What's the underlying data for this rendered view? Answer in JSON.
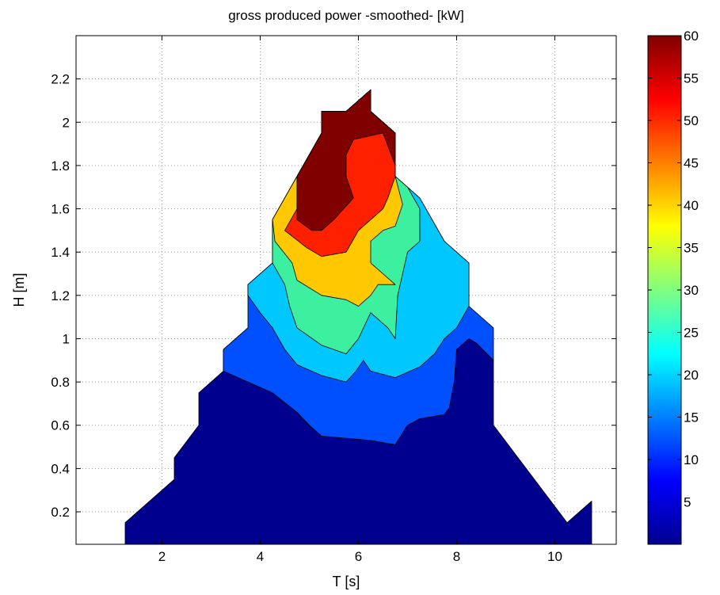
{
  "chart_data": {
    "type": "contour",
    "title": "gross produced power -smoothed- [kW]",
    "xlabel": "T [s]",
    "ylabel": "H [m]",
    "xlim": [
      0.25,
      11.25
    ],
    "ylim": [
      0.05,
      2.4
    ],
    "xticks": [
      2,
      4,
      6,
      8,
      10
    ],
    "yticks": [
      0.2,
      0.4,
      0.6,
      0.8,
      1,
      1.2,
      1.4,
      1.6,
      1.8,
      2,
      2.2
    ],
    "ytick_labels": [
      "0.2",
      "0.4",
      "0.6",
      "0.8",
      "1",
      "1.2",
      "1.4",
      "1.6",
      "1.8",
      "2",
      "2.2"
    ],
    "grid": true,
    "colormap": "jet",
    "colorbar": {
      "range": [
        0,
        60
      ],
      "ticks": [
        5,
        10,
        15,
        20,
        25,
        30,
        35,
        40,
        45,
        50,
        55,
        60
      ],
      "tick_labels": [
        "5",
        "10",
        "15",
        "20",
        "25",
        "30",
        "35",
        "40",
        "45",
        "50",
        "55",
        "60"
      ]
    },
    "levels": [
      {
        "value": 0,
        "color": "#00008f",
        "polygon": [
          [
            1.25,
            0.05
          ],
          [
            1.25,
            0.15
          ],
          [
            2.25,
            0.35
          ],
          [
            2.25,
            0.45
          ],
          [
            2.75,
            0.6
          ],
          [
            2.75,
            0.75
          ],
          [
            3.25,
            0.85
          ],
          [
            3.25,
            0.95
          ],
          [
            3.75,
            1.05
          ],
          [
            8.25,
            1.05
          ],
          [
            8.75,
            0.9
          ],
          [
            8.75,
            0.6
          ],
          [
            9.25,
            0.45
          ],
          [
            9.75,
            0.3
          ],
          [
            10.25,
            0.15
          ],
          [
            10.75,
            0.25
          ],
          [
            10.75,
            0.05
          ]
        ]
      },
      {
        "value": 10,
        "color": "#0050ff",
        "polygon": [
          [
            3.25,
            0.85
          ],
          [
            3.25,
            0.95
          ],
          [
            3.75,
            1.05
          ],
          [
            3.75,
            1.25
          ],
          [
            4.25,
            1.35
          ],
          [
            4.25,
            1.55
          ],
          [
            4.75,
            1.75
          ],
          [
            5.25,
            1.95
          ],
          [
            5.25,
            2.05
          ],
          [
            5.75,
            2.05
          ],
          [
            6.25,
            2.15
          ],
          [
            6.25,
            2.05
          ],
          [
            6.75,
            1.95
          ],
          [
            6.75,
            1.75
          ],
          [
            7.25,
            1.65
          ],
          [
            7.75,
            1.45
          ],
          [
            8.25,
            1.35
          ],
          [
            8.25,
            1.15
          ],
          [
            8.75,
            1.05
          ],
          [
            8.75,
            0.9
          ],
          [
            8.4,
            0.98
          ],
          [
            8.25,
            1.0
          ],
          [
            8.0,
            0.95
          ],
          [
            7.95,
            0.8
          ],
          [
            7.85,
            0.68
          ],
          [
            7.75,
            0.65
          ],
          [
            7.25,
            0.63
          ],
          [
            7.0,
            0.6
          ],
          [
            6.75,
            0.51
          ],
          [
            6.25,
            0.53
          ],
          [
            5.75,
            0.54
          ],
          [
            5.25,
            0.55
          ],
          [
            5.0,
            0.6
          ],
          [
            4.75,
            0.66
          ],
          [
            4.25,
            0.75
          ],
          [
            3.75,
            0.8
          ]
        ]
      },
      {
        "value": 15,
        "color": "#00c8ff",
        "polygon": [
          [
            3.75,
            1.25
          ],
          [
            4.25,
            1.35
          ],
          [
            4.25,
            1.55
          ],
          [
            4.75,
            1.75
          ],
          [
            5.25,
            1.95
          ],
          [
            5.25,
            2.05
          ],
          [
            5.75,
            2.05
          ],
          [
            6.25,
            2.15
          ],
          [
            6.25,
            2.05
          ],
          [
            6.75,
            1.95
          ],
          [
            6.75,
            1.75
          ],
          [
            7.25,
            1.65
          ],
          [
            7.75,
            1.45
          ],
          [
            8.25,
            1.35
          ],
          [
            8.25,
            1.15
          ],
          [
            8.0,
            1.05
          ],
          [
            7.75,
            1.0
          ],
          [
            7.55,
            0.93
          ],
          [
            7.25,
            0.87
          ],
          [
            6.75,
            0.82
          ],
          [
            6.25,
            0.85
          ],
          [
            6.1,
            0.9
          ],
          [
            5.95,
            0.85
          ],
          [
            5.75,
            0.8
          ],
          [
            5.25,
            0.83
          ],
          [
            4.75,
            0.88
          ],
          [
            4.5,
            0.95
          ],
          [
            4.25,
            1.05
          ],
          [
            4.0,
            1.12
          ],
          [
            3.75,
            1.2
          ]
        ]
      },
      {
        "value": 20,
        "color": "#3cf0a0",
        "polygon": [
          [
            4.25,
            1.35
          ],
          [
            4.25,
            1.55
          ],
          [
            4.75,
            1.75
          ],
          [
            5.25,
            1.95
          ],
          [
            5.25,
            2.05
          ],
          [
            5.75,
            2.05
          ],
          [
            6.25,
            2.15
          ],
          [
            6.25,
            2.05
          ],
          [
            6.75,
            1.95
          ],
          [
            6.75,
            1.75
          ],
          [
            7.0,
            1.7
          ],
          [
            7.25,
            1.6
          ],
          [
            7.25,
            1.45
          ],
          [
            7.0,
            1.4
          ],
          [
            6.9,
            1.3
          ],
          [
            6.8,
            1.2
          ],
          [
            6.75,
            1.0
          ],
          [
            6.6,
            1.05
          ],
          [
            6.25,
            1.12
          ],
          [
            6.0,
            1.0
          ],
          [
            5.75,
            0.93
          ],
          [
            5.25,
            0.97
          ],
          [
            4.75,
            1.05
          ],
          [
            4.6,
            1.15
          ],
          [
            4.5,
            1.25
          ]
        ]
      },
      {
        "value": 30,
        "color": "#ffc800",
        "polygon": [
          [
            4.3,
            1.45
          ],
          [
            4.25,
            1.55
          ],
          [
            4.75,
            1.75
          ],
          [
            5.25,
            1.95
          ],
          [
            5.25,
            2.05
          ],
          [
            5.75,
            2.05
          ],
          [
            6.25,
            2.15
          ],
          [
            6.25,
            2.05
          ],
          [
            6.75,
            1.95
          ],
          [
            6.75,
            1.75
          ],
          [
            6.9,
            1.62
          ],
          [
            6.75,
            1.52
          ],
          [
            6.5,
            1.5
          ],
          [
            6.25,
            1.45
          ],
          [
            6.25,
            1.35
          ],
          [
            6.5,
            1.3
          ],
          [
            6.75,
            1.25
          ],
          [
            6.4,
            1.25
          ],
          [
            6.25,
            1.2
          ],
          [
            6.0,
            1.15
          ],
          [
            5.75,
            1.18
          ],
          [
            5.25,
            1.2
          ],
          [
            4.75,
            1.27
          ],
          [
            4.65,
            1.35
          ]
        ]
      },
      {
        "value": 40,
        "color": "#ff2000",
        "polygon": [
          [
            4.5,
            1.5
          ],
          [
            4.75,
            1.6
          ],
          [
            4.75,
            1.75
          ],
          [
            5.25,
            1.95
          ],
          [
            5.25,
            2.05
          ],
          [
            5.75,
            2.05
          ],
          [
            6.25,
            2.15
          ],
          [
            6.25,
            2.05
          ],
          [
            6.75,
            1.95
          ],
          [
            6.75,
            1.75
          ],
          [
            6.6,
            1.65
          ],
          [
            6.5,
            1.6
          ],
          [
            6.0,
            1.5
          ],
          [
            5.75,
            1.4
          ],
          [
            5.25,
            1.38
          ],
          [
            4.95,
            1.42
          ]
        ]
      },
      {
        "value": 55,
        "color": "#800000",
        "polygon": [
          [
            4.75,
            1.55
          ],
          [
            4.75,
            1.75
          ],
          [
            5.25,
            1.95
          ],
          [
            5.25,
            2.05
          ],
          [
            5.75,
            2.05
          ],
          [
            6.25,
            2.15
          ],
          [
            6.25,
            2.05
          ],
          [
            6.75,
            1.95
          ],
          [
            6.75,
            1.8
          ],
          [
            6.5,
            1.95
          ],
          [
            5.9,
            1.92
          ],
          [
            5.75,
            1.85
          ],
          [
            5.75,
            1.75
          ],
          [
            5.9,
            1.65
          ],
          [
            5.5,
            1.55
          ],
          [
            5.25,
            1.5
          ],
          [
            5.05,
            1.5
          ]
        ]
      }
    ]
  }
}
